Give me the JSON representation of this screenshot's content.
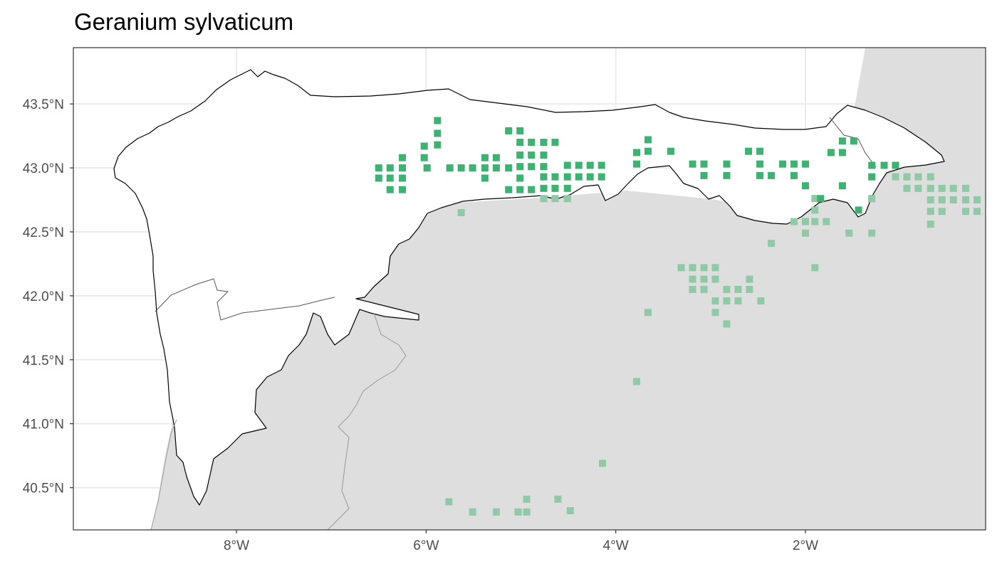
{
  "title": "Geranium sylvaticum",
  "map": {
    "x_ticks": [
      {
        "value": -8,
        "label": "8°W"
      },
      {
        "value": -6,
        "label": "6°W"
      },
      {
        "value": -4,
        "label": "4°W"
      },
      {
        "value": -2,
        "label": "2°W"
      }
    ],
    "y_ticks": [
      {
        "value": 43.5,
        "label": "43.5°N"
      },
      {
        "value": 43.0,
        "label": "43.0°N"
      },
      {
        "value": 42.5,
        "label": "42.5°N"
      },
      {
        "value": 42.0,
        "label": "42.0°N"
      },
      {
        "value": 41.5,
        "label": "41.5°N"
      },
      {
        "value": 41.0,
        "label": "41.0°N"
      },
      {
        "value": 40.5,
        "label": "40.5°N"
      }
    ],
    "lon_range": [
      -9.72,
      -0.1
    ],
    "lat_range": [
      40.17,
      43.94
    ],
    "colors": {
      "inside_region": "#3cb371",
      "outside_region": "#8fc9a6",
      "land_outside": "#dedede",
      "region_fill": "#ffffff",
      "grid": "#ebebeb",
      "border": "#333333"
    },
    "points_inside_region": [
      [
        -6.5,
        43.0
      ],
      [
        -6.5,
        42.92
      ],
      [
        -6.38,
        43.0
      ],
      [
        -6.38,
        42.92
      ],
      [
        -6.38,
        42.83
      ],
      [
        -6.25,
        43.08
      ],
      [
        -6.25,
        43.0
      ],
      [
        -6.25,
        42.92
      ],
      [
        -6.25,
        42.83
      ],
      [
        -6.02,
        43.17
      ],
      [
        -6.02,
        43.08
      ],
      [
        -5.99,
        43.0
      ],
      [
        -5.88,
        43.37
      ],
      [
        -5.88,
        43.27
      ],
      [
        -5.88,
        43.18
      ],
      [
        -5.75,
        43.0
      ],
      [
        -5.63,
        43.0
      ],
      [
        -5.51,
        43.0
      ],
      [
        -5.38,
        43.08
      ],
      [
        -5.38,
        43.0
      ],
      [
        -5.38,
        42.92
      ],
      [
        -5.26,
        43.08
      ],
      [
        -5.26,
        43.0
      ],
      [
        -5.13,
        43.29
      ],
      [
        -5.13,
        43.0
      ],
      [
        -5.13,
        42.83
      ],
      [
        -5.01,
        43.29
      ],
      [
        -5.01,
        43.2
      ],
      [
        -5.01,
        43.1
      ],
      [
        -5.01,
        43.01
      ],
      [
        -5.01,
        42.92
      ],
      [
        -5.01,
        42.83
      ],
      [
        -4.89,
        43.2
      ],
      [
        -4.89,
        43.1
      ],
      [
        -4.89,
        43.01
      ],
      [
        -4.89,
        42.83
      ],
      [
        -4.76,
        43.2
      ],
      [
        -4.76,
        43.1
      ],
      [
        -4.76,
        43.01
      ],
      [
        -4.76,
        42.93
      ],
      [
        -4.76,
        42.84
      ],
      [
        -4.64,
        43.2
      ],
      [
        -4.64,
        42.93
      ],
      [
        -4.64,
        42.84
      ],
      [
        -4.51,
        43.02
      ],
      [
        -4.51,
        42.93
      ],
      [
        -4.51,
        42.84
      ],
      [
        -4.39,
        43.02
      ],
      [
        -4.39,
        42.93
      ],
      [
        -4.27,
        43.02
      ],
      [
        -4.27,
        42.93
      ],
      [
        -4.15,
        43.02
      ],
      [
        -4.15,
        42.93
      ],
      [
        -3.78,
        43.12
      ],
      [
        -3.78,
        43.03
      ],
      [
        -3.66,
        43.22
      ],
      [
        -3.66,
        43.13
      ],
      [
        -3.42,
        43.13
      ],
      [
        -3.19,
        43.03
      ],
      [
        -3.07,
        43.03
      ],
      [
        -3.07,
        42.94
      ],
      [
        -2.83,
        43.03
      ],
      [
        -2.83,
        42.94
      ],
      [
        -2.6,
        43.13
      ],
      [
        -2.48,
        43.13
      ],
      [
        -2.48,
        43.03
      ],
      [
        -2.48,
        42.94
      ],
      [
        -2.36,
        42.94
      ],
      [
        -2.24,
        43.03
      ],
      [
        -2.12,
        43.03
      ],
      [
        -2.12,
        42.94
      ],
      [
        -2.0,
        43.03
      ],
      [
        -2.0,
        42.86
      ],
      [
        -1.84,
        42.76
      ],
      [
        -1.73,
        43.12
      ],
      [
        -1.61,
        43.21
      ],
      [
        -1.61,
        43.12
      ],
      [
        -1.61,
        42.86
      ],
      [
        -1.49,
        43.21
      ],
      [
        -1.44,
        42.67
      ],
      [
        -1.3,
        43.02
      ],
      [
        -1.3,
        42.93
      ],
      [
        -1.17,
        43.02
      ],
      [
        -1.05,
        43.02
      ]
    ],
    "points_outside_region": [
      [
        -5.63,
        42.65
      ],
      [
        -4.76,
        42.76
      ],
      [
        -4.64,
        42.76
      ],
      [
        -4.51,
        42.76
      ],
      [
        -1.9,
        42.76
      ],
      [
        -1.9,
        42.67
      ],
      [
        -1.78,
        42.58
      ],
      [
        -1.3,
        42.76
      ],
      [
        -1.05,
        42.93
      ],
      [
        -0.93,
        42.93
      ],
      [
        -0.81,
        42.93
      ],
      [
        -0.68,
        42.93
      ],
      [
        -0.93,
        42.84
      ],
      [
        -0.81,
        42.84
      ],
      [
        -0.68,
        42.84
      ],
      [
        -0.56,
        42.84
      ],
      [
        -0.44,
        42.84
      ],
      [
        -0.31,
        42.84
      ],
      [
        -0.68,
        42.75
      ],
      [
        -0.56,
        42.75
      ],
      [
        -0.44,
        42.75
      ],
      [
        -0.31,
        42.75
      ],
      [
        -0.19,
        42.75
      ],
      [
        -0.68,
        42.66
      ],
      [
        -0.56,
        42.66
      ],
      [
        -0.31,
        42.66
      ],
      [
        -0.19,
        42.66
      ],
      [
        -0.68,
        42.56
      ],
      [
        -2.12,
        42.58
      ],
      [
        -2.0,
        42.58
      ],
      [
        -1.9,
        42.58
      ],
      [
        -2.0,
        42.49
      ],
      [
        -1.54,
        42.49
      ],
      [
        -1.3,
        42.49
      ],
      [
        -2.36,
        42.41
      ],
      [
        -1.9,
        42.22
      ],
      [
        -3.31,
        42.22
      ],
      [
        -3.19,
        42.22
      ],
      [
        -3.07,
        42.22
      ],
      [
        -2.95,
        42.22
      ],
      [
        -3.19,
        42.13
      ],
      [
        -3.07,
        42.13
      ],
      [
        -2.95,
        42.13
      ],
      [
        -2.59,
        42.13
      ],
      [
        -3.19,
        42.05
      ],
      [
        -3.07,
        42.05
      ],
      [
        -2.83,
        42.05
      ],
      [
        -2.71,
        42.05
      ],
      [
        -2.59,
        42.05
      ],
      [
        -2.95,
        41.96
      ],
      [
        -2.83,
        41.96
      ],
      [
        -2.71,
        41.96
      ],
      [
        -2.47,
        41.96
      ],
      [
        -2.95,
        41.87
      ],
      [
        -2.83,
        41.78
      ],
      [
        -3.66,
        41.87
      ],
      [
        -3.78,
        41.33
      ],
      [
        -4.14,
        40.69
      ],
      [
        -5.76,
        40.39
      ],
      [
        -5.51,
        40.31
      ],
      [
        -5.26,
        40.31
      ],
      [
        -5.03,
        40.31
      ],
      [
        -4.94,
        40.31
      ],
      [
        -4.94,
        40.41
      ],
      [
        -4.61,
        40.41
      ],
      [
        -4.48,
        40.32
      ]
    ]
  }
}
